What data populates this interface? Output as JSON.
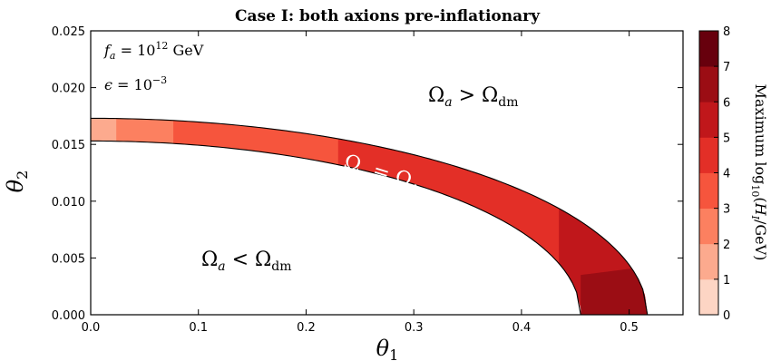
{
  "chart_data": {
    "type": "heatmap",
    "title": "Case I: both axions pre-inflationary",
    "xlabel": "θ_1",
    "ylabel": "θ_2",
    "xlim": [
      0.0,
      0.55
    ],
    "ylim": [
      0.0,
      0.025
    ],
    "xticks": [
      "0.0",
      "0.1",
      "0.2",
      "0.3",
      "0.4",
      "0.5"
    ],
    "yticks": [
      "0.000",
      "0.005",
      "0.010",
      "0.015",
      "0.020",
      "0.025"
    ],
    "params": {
      "fa": "f_a = 10^12 GeV",
      "epsilon": "ε = 10^-3"
    },
    "band": {
      "description": "Ω_a = Ω_dm",
      "outer": {
        "x_intercept": 0.517,
        "y_intercept": 0.0173
      },
      "inner": {
        "x_intercept": 0.455,
        "y_intercept": 0.0153
      },
      "segments": [
        {
          "x_from": 0.0,
          "x_to": 0.024,
          "level": 2
        },
        {
          "x_from": 0.024,
          "x_to": 0.077,
          "level": 3
        },
        {
          "x_from": 0.077,
          "x_to": 0.23,
          "level": 4
        },
        {
          "x_from": 0.23,
          "x_to": 0.435,
          "level": 5
        },
        {
          "x_from": 0.435,
          "x_to": 0.517,
          "level": 6
        }
      ],
      "dark_region": {
        "x_from": 0.455,
        "x_to": 0.517,
        "y_max": 0.0035,
        "level": 7
      }
    },
    "labels": {
      "above": "Ω_a > Ω_dm",
      "below": "Ω_a < Ω_dm",
      "band": "Ω_a = Ω_dm"
    },
    "colorbar": {
      "label": "Maximum log10(H_I/GeV)",
      "range": [
        0,
        8
      ],
      "ticks": [
        "0",
        "1",
        "2",
        "3",
        "4",
        "5",
        "6",
        "7",
        "8"
      ],
      "colors": [
        "#fff5f0",
        "#fdd5c4",
        "#fcaa8e",
        "#fc8060",
        "#f6553d",
        "#e32f27",
        "#c0171b",
        "#9b0d14",
        "#67000d"
      ]
    },
    "grid": false,
    "legend": "none"
  }
}
